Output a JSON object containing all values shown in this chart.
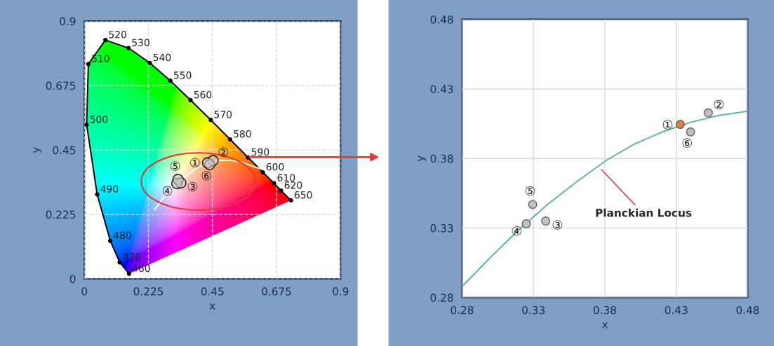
{
  "chart_data": [
    {
      "type": "line",
      "xlabel": "x",
      "ylabel": "y",
      "xlim": [
        0,
        0.9
      ],
      "ylim": [
        0,
        0.9
      ],
      "xticks": [
        0,
        0.225,
        0.45,
        0.675,
        0.9
      ],
      "yticks": [
        0,
        0.225,
        0.45,
        0.675,
        0.9
      ],
      "grid": true,
      "series": [
        {
          "type": "line",
          "color": "#000000",
          "marker": "circle",
          "x": [
            0.157,
            0.124,
            0.091,
            0.045,
            0.008,
            0.014,
            0.074,
            0.155,
            0.23,
            0.302,
            0.373,
            0.444,
            0.512,
            0.575,
            0.627,
            0.666,
            0.691,
            0.726
          ],
          "values": [
            0.018,
            0.058,
            0.133,
            0.295,
            0.538,
            0.75,
            0.834,
            0.806,
            0.754,
            0.692,
            0.624,
            0.555,
            0.487,
            0.424,
            0.372,
            0.334,
            0.308,
            0.274
          ]
        },
        {
          "type": "line",
          "color": "#ffffff",
          "marker": "none",
          "x": [
            0.247,
            0.28,
            0.32,
            0.36,
            0.4,
            0.44,
            0.48,
            0.52,
            0.56,
            0.6,
            0.645
          ],
          "values": [
            0.241,
            0.288,
            0.329,
            0.363,
            0.39,
            0.406,
            0.414,
            0.413,
            0.405,
            0.39,
            0.377
          ]
        },
        {
          "type": "scatter",
          "color": "#c8c8c8",
          "marker": "circle",
          "x": [
            0.433,
            0.452,
            0.339,
            0.325,
            0.329,
            0.44
          ],
          "values": [
            0.405,
            0.413,
            0.335,
            0.333,
            0.347,
            0.399
          ],
          "value_labels": [
            "①",
            "②",
            "③",
            "④",
            "⑤",
            "⑥"
          ]
        }
      ],
      "annotations": [
        {
          "text": "520",
          "x": 0.074,
          "y": 0.834
        },
        {
          "text": "530",
          "x": 0.155,
          "y": 0.806
        },
        {
          "text": "540",
          "x": 0.23,
          "y": 0.754
        },
        {
          "text": "550",
          "x": 0.302,
          "y": 0.692
        },
        {
          "text": "560",
          "x": 0.373,
          "y": 0.624
        },
        {
          "text": "570",
          "x": 0.444,
          "y": 0.555
        },
        {
          "text": "580",
          "x": 0.512,
          "y": 0.487
        },
        {
          "text": "590",
          "x": 0.575,
          "y": 0.424
        },
        {
          "text": "600",
          "x": 0.627,
          "y": 0.372
        },
        {
          "text": "610",
          "x": 0.666,
          "y": 0.334
        },
        {
          "text": "620",
          "x": 0.691,
          "y": 0.308
        },
        {
          "text": "650",
          "x": 0.726,
          "y": 0.274
        },
        {
          "text": "510",
          "x": 0.014,
          "y": 0.75
        },
        {
          "text": "500",
          "x": 0.008,
          "y": 0.538
        },
        {
          "text": "490",
          "x": 0.045,
          "y": 0.295
        },
        {
          "text": "480",
          "x": 0.091,
          "y": 0.133
        },
        {
          "text": "470",
          "x": 0.124,
          "y": 0.058
        },
        {
          "text": "460",
          "x": 0.157,
          "y": 0.018
        }
      ]
    },
    {
      "type": "scatter",
      "xlabel": "x",
      "ylabel": "y",
      "xlim": [
        0.28,
        0.48
      ],
      "ylim": [
        0.28,
        0.48
      ],
      "xticks": [
        0.28,
        0.33,
        0.38,
        0.43,
        0.48
      ],
      "yticks": [
        0.28,
        0.33,
        0.38,
        0.43,
        0.48
      ],
      "grid": true,
      "series": [
        {
          "type": "line",
          "color": "#5fb3a8",
          "marker": "none",
          "x": [
            0.28,
            0.3,
            0.32,
            0.34,
            0.36,
            0.38,
            0.4,
            0.42,
            0.44,
            0.46,
            0.48
          ],
          "values": [
            0.288,
            0.309,
            0.329,
            0.347,
            0.363,
            0.378,
            0.39,
            0.399,
            0.406,
            0.411,
            0.414
          ]
        },
        {
          "type": "scatter",
          "marker": "circle",
          "colors": [
            "#e07b39",
            "#c0c0c0",
            "#c0c0c0",
            "#c0c0c0",
            "#c0c0c0",
            "#c0c0c0"
          ],
          "x": [
            0.4328,
            0.4524,
            0.3386,
            0.325,
            0.3294,
            0.44
          ],
          "values": [
            0.4045,
            0.4128,
            0.335,
            0.333,
            0.3469,
            0.3991
          ],
          "value_labels": [
            "①",
            "②",
            "③",
            "④",
            "⑤",
            "⑥"
          ]
        }
      ],
      "annotations": [
        {
          "text": "Planckian Locus",
          "x": 0.3766,
          "y": 0.3731
        }
      ]
    }
  ]
}
